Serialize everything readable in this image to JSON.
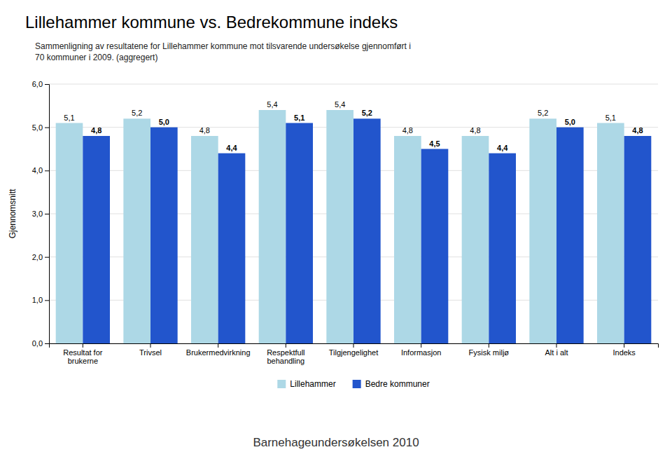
{
  "chart_data": {
    "type": "bar",
    "title": "Lillehammer kommune vs. Bedrekommune indeks",
    "subtitle": "Sammenligning av resultatene for Lillehammer kommune mot tilsvarende undersøkelse gjennomført i\n70 kommuner i 2009. (aggregert)",
    "annotations": [
      "Barnehageundersøkelsen 2010"
    ],
    "y_label": "Gjennomsnitt",
    "categories": [
      "Resultat for\nbrukerne",
      "Trivsel",
      "Brukermedvirkning",
      "Respektfull\nbehandling",
      "Tilgjengelighet",
      "Informasjon",
      "Fysisk miljø",
      "Alt i alt",
      "Indeks"
    ],
    "series": [
      {
        "name": "Lillehammer",
        "color": "#ADD8E6",
        "values": [
          5.1,
          5.2,
          4.8,
          5.4,
          5.4,
          4.8,
          4.8,
          5.2,
          5.1
        ],
        "value_labels": [
          "5,1",
          "5,2",
          "4,8",
          "5,4",
          "5,4",
          "4,8",
          "4,8",
          "5,2",
          "5,1"
        ]
      },
      {
        "name": "Bedre kommuner",
        "color": "#2255CC",
        "values": [
          4.8,
          5.0,
          4.4,
          5.1,
          5.2,
          4.5,
          4.4,
          5.0,
          4.8
        ],
        "value_labels": [
          "4,8",
          "5,0",
          "4,4",
          "5,1",
          "5,2",
          "4,5",
          "4,4",
          "5,0",
          "4,8"
        ]
      }
    ],
    "ylim": [
      0.0,
      6.0
    ],
    "yticks": [
      {
        "value": 0.0,
        "label": "0,0"
      },
      {
        "value": 1.0,
        "label": "1,0"
      },
      {
        "value": 2.0,
        "label": "2,0"
      },
      {
        "value": 3.0,
        "label": "3,0"
      },
      {
        "value": 4.0,
        "label": "4,0"
      },
      {
        "value": 5.0,
        "label": "5,0"
      },
      {
        "value": 6.0,
        "label": "6,0"
      }
    ],
    "grid": true,
    "legend": "bottom",
    "data_labels": true
  }
}
